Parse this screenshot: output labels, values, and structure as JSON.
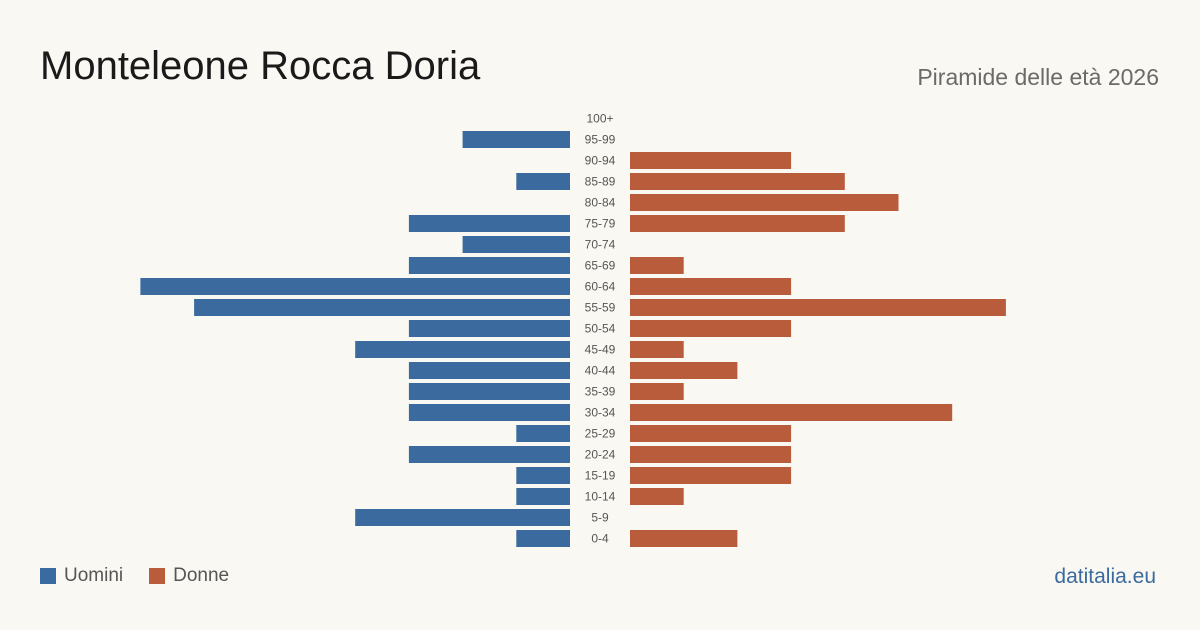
{
  "header": {
    "title": "Monteleone Rocca Doria",
    "subtitle": "Piramide delle età 2026"
  },
  "legend": {
    "men_label": "Uomini",
    "women_label": "Donne"
  },
  "footer": {
    "brand": "datitalia.eu"
  },
  "colors": {
    "men": "#3a6a9e",
    "women": "#b95c3c",
    "tick": "#555555"
  },
  "chart_data": {
    "type": "bar",
    "orientation": "horizontal-pyramid",
    "categories": [
      "100+",
      "95-99",
      "90-94",
      "85-89",
      "80-84",
      "75-79",
      "70-74",
      "65-69",
      "60-64",
      "55-59",
      "50-54",
      "45-49",
      "40-44",
      "35-39",
      "30-34",
      "25-29",
      "20-24",
      "15-19",
      "10-14",
      "5-9",
      "0-4"
    ],
    "series": [
      {
        "name": "Uomini",
        "values": [
          0,
          2,
          0,
          1,
          0,
          3,
          2,
          3,
          8,
          7,
          3,
          4,
          3,
          3,
          3,
          1,
          3,
          1,
          1,
          4,
          1
        ]
      },
      {
        "name": "Donne",
        "values": [
          0,
          0,
          3,
          4,
          5,
          4,
          0,
          1,
          3,
          7,
          3,
          1,
          2,
          1,
          6,
          3,
          3,
          3,
          1,
          0,
          2
        ]
      }
    ],
    "title": "Monteleone Rocca Doria",
    "legend_position": "bottom-left",
    "grid": false
  }
}
